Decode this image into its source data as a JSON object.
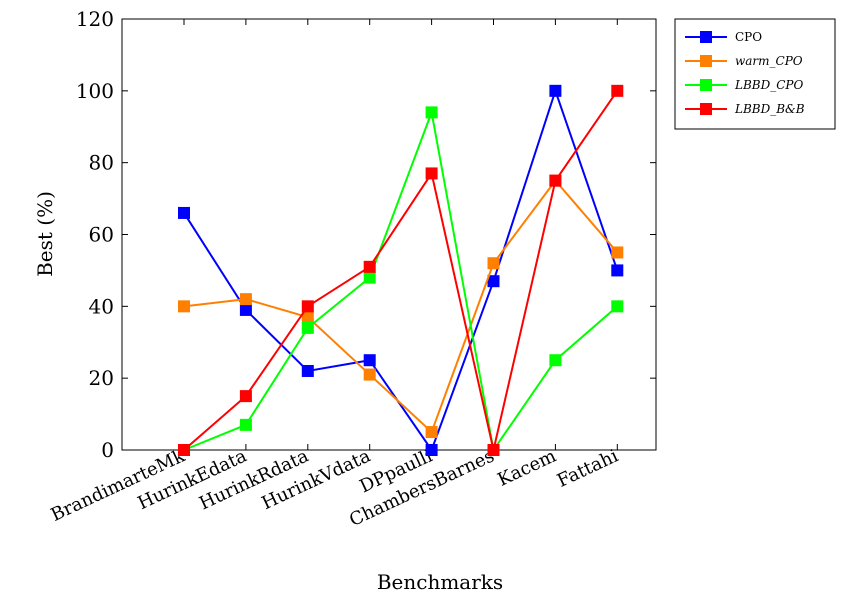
{
  "chart_data": {
    "type": "line",
    "xlabel": "Benchmarks",
    "ylabel": "Best (%)",
    "ylim": [
      0,
      120
    ],
    "yticks": [
      0,
      20,
      40,
      60,
      80,
      100,
      120
    ],
    "categories": [
      "BrandimarteMk",
      "HurinkEdata",
      "HurinkRdata",
      "HurinkVdata",
      "DPpaulli",
      "ChambersBarnes",
      "Kacem",
      "Fattahi"
    ],
    "grid": false,
    "legend_position": "outside-top-right",
    "series": [
      {
        "name": "CPO",
        "color": "#0000ff",
        "values": [
          66,
          39,
          22,
          25,
          0,
          47,
          100,
          50
        ]
      },
      {
        "name": "warm_CPO",
        "color": "#ff8000",
        "values": [
          40,
          42,
          37,
          21,
          5,
          52,
          75,
          55
        ]
      },
      {
        "name": "LBBD_CPO",
        "color": "#00ff00",
        "values": [
          0,
          7,
          34,
          48,
          94,
          0,
          25,
          40
        ]
      },
      {
        "name": "LBBD_B&B",
        "color": "#ff0000",
        "values": [
          0,
          15,
          40,
          51,
          77,
          0,
          75,
          100
        ]
      }
    ]
  }
}
